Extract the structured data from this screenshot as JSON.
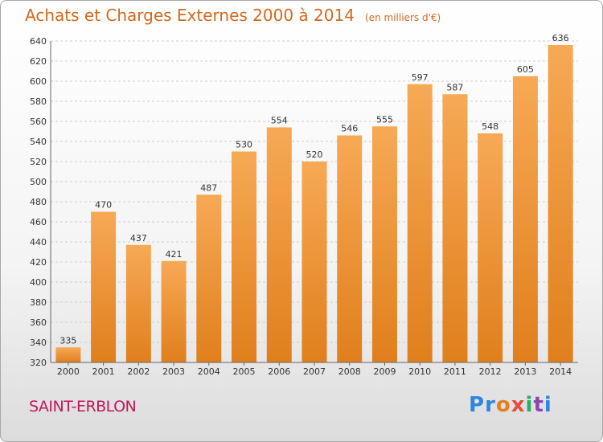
{
  "header": {
    "title": "Achats et Charges Externes 2000 à 2014",
    "subtitle": "(en milliers d'€)"
  },
  "footer": {
    "city": "SAINT-ERBLON",
    "logo_letters": [
      "P",
      "r",
      "o",
      "x",
      "i",
      "t",
      "i"
    ]
  },
  "colors": {
    "title": "#d2691e",
    "city": "#c2185b",
    "bar_light": "#f7a955",
    "bar_dark": "#e07f1c",
    "logo": [
      "#2e86de",
      "#2e86de",
      "#e67e22",
      "#e74c3c",
      "#27ae60",
      "#8e44ad",
      "#2e86de"
    ]
  },
  "chart_data": {
    "type": "bar",
    "title": "Achats et Charges Externes 2000 à 2014",
    "subtitle": "(en milliers d'€)",
    "xlabel": "",
    "ylabel": "",
    "categories": [
      "2000",
      "2001",
      "2002",
      "2003",
      "2004",
      "2005",
      "2006",
      "2007",
      "2008",
      "2009",
      "2010",
      "2011",
      "2012",
      "2013",
      "2014"
    ],
    "values": [
      335,
      470,
      437,
      421,
      487,
      530,
      554,
      520,
      546,
      555,
      597,
      587,
      548,
      605,
      636
    ],
    "ylim": [
      320,
      640
    ],
    "yticks": [
      320,
      340,
      360,
      380,
      400,
      420,
      440,
      460,
      480,
      500,
      520,
      540,
      560,
      580,
      600,
      620,
      640
    ],
    "grid": true,
    "legend": "none"
  }
}
